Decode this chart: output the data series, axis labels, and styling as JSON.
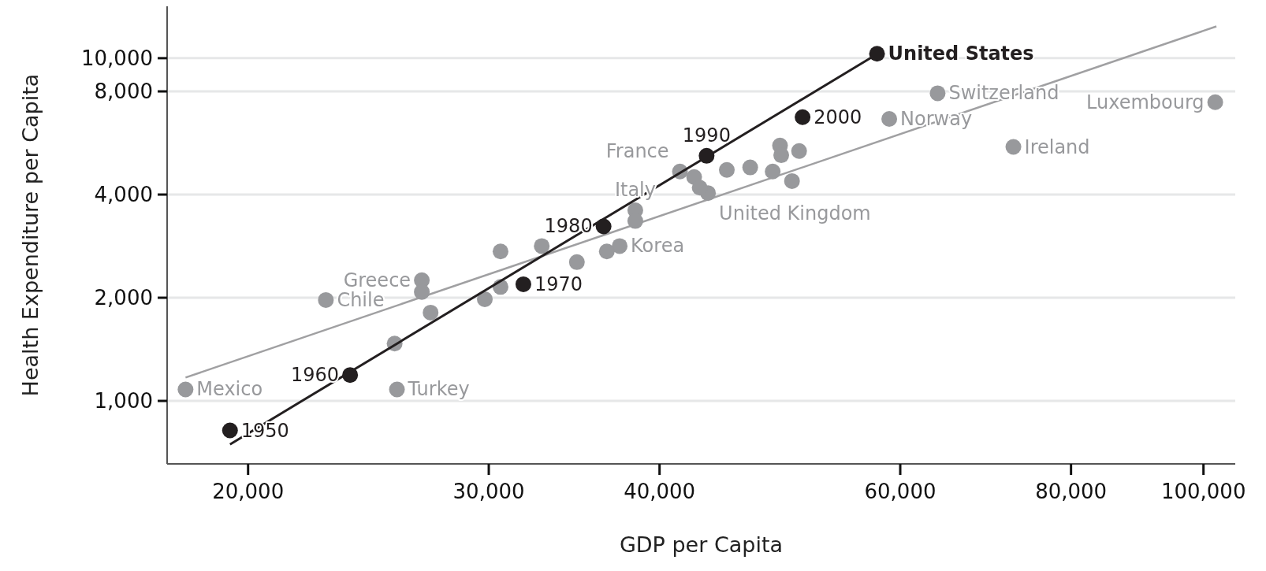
{
  "chart_data": {
    "type": "scatter",
    "xlabel": "GDP per Capita",
    "ylabel": "Health Expenditure per Capita",
    "log": "xy",
    "grid": "y",
    "marker": "circle",
    "xlim": [
      17450,
      105500
    ],
    "ylim": [
      655,
      14170
    ],
    "xticks": [
      {
        "value": 20000,
        "label": "20,000"
      },
      {
        "value": 30000,
        "label": "30,000"
      },
      {
        "value": 40000,
        "label": "40,000"
      },
      {
        "value": 60000,
        "label": "60,000"
      },
      {
        "value": 80000,
        "label": "80,000"
      },
      {
        "value": 100000,
        "label": "100,000"
      }
    ],
    "yticks": [
      {
        "value": 1000,
        "label": "1,000"
      },
      {
        "value": 2000,
        "label": "2,000"
      },
      {
        "value": 4000,
        "label": "4,000"
      },
      {
        "value": 8000,
        "label": "8,000"
      },
      {
        "value": 10000,
        "label": "10,000"
      }
    ],
    "series": [
      {
        "type": "line",
        "marker": "none",
        "color": "#a0a0a2",
        "x": [
          18000,
          102200
        ],
        "values": [
          1170,
          12380
        ]
      },
      {
        "color": "#98999c",
        "x": [
          18000,
          25700,
          22800,
          26800,
          26800,
          27200,
          25600,
          29800,
          30600,
          30600,
          32800,
          34800,
          37400,
          36600,
          38400,
          38400,
          41400,
          42400,
          43400,
          42800,
          44800,
          46600,
          48400,
          49000,
          49100,
          50600,
          50000,
          58900,
          63900,
          72600,
          102000
        ],
        "values": [
          1080,
          1080,
          1970,
          2250,
          2080,
          1810,
          1470,
          1980,
          2150,
          2730,
          2830,
          2540,
          2830,
          2730,
          3600,
          3350,
          4670,
          4500,
          4040,
          4190,
          4720,
          4800,
          4670,
          5560,
          5210,
          5360,
          4380,
          6650,
          7900,
          5510,
          7440
        ],
        "value_labels": [
          "Mexico",
          "Turkey",
          "Chile",
          "Greece",
          null,
          null,
          null,
          null,
          null,
          null,
          null,
          null,
          "Korea",
          null,
          "Italy",
          null,
          "France",
          null,
          "United Kingdom",
          null,
          null,
          null,
          null,
          null,
          null,
          null,
          null,
          "Norway",
          "Switzerland",
          "Ireland",
          "Luxembourg"
        ]
      },
      {
        "type": "line",
        "marker": "none",
        "color": "#231f20",
        "x": [
          19400,
          57150
        ],
        "values": [
          747,
          10050
        ]
      },
      {
        "color": "#231f20",
        "x": [
          19400,
          23750,
          31800,
          36400,
          43300,
          50900,
          57700
        ],
        "values": [
          820,
          1190,
          2190,
          3230,
          5190,
          6730,
          10300
        ],
        "value_labels": [
          null,
          null,
          null,
          null,
          null,
          null,
          "United States"
        ]
      }
    ],
    "annotations": [
      {
        "text": "1950",
        "x": 19400,
        "y": 820
      },
      {
        "text": "1960",
        "x": 23750,
        "y": 1190
      },
      {
        "text": "1970",
        "x": 31800,
        "y": 2190
      },
      {
        "text": "1980",
        "x": 36400,
        "y": 3230
      },
      {
        "text": "1990",
        "x": 43300,
        "y": 5190
      },
      {
        "text": "2000",
        "x": 50900,
        "y": 6730
      }
    ]
  }
}
